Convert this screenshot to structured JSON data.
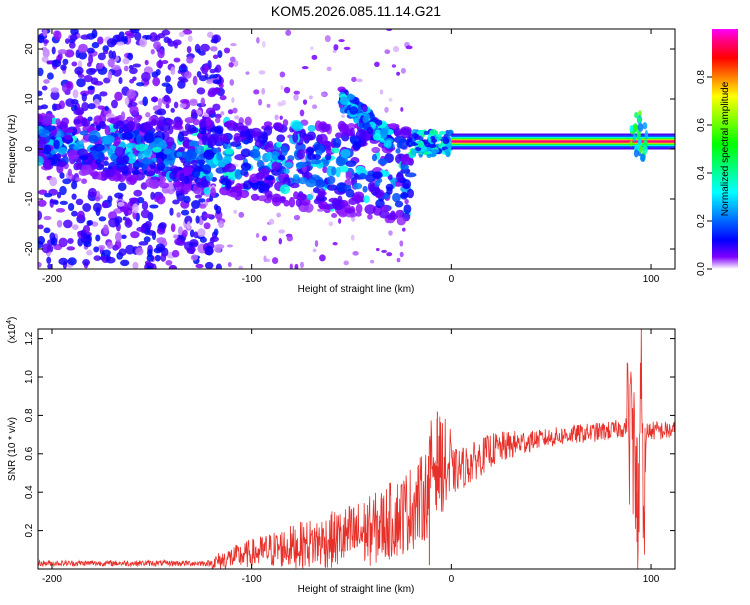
{
  "title": "KOM5.2026.085.11.14.G21",
  "chart_data": [
    {
      "type": "heatmap",
      "title": "KOM5.2026.085.11.14.G21",
      "xlabel": "Height of straight line (km)",
      "ylabel": "Frequency (Hz)",
      "xlim": [
        -207,
        112
      ],
      "ylim": [
        -24,
        24
      ],
      "xticks": [
        -200,
        -100,
        0,
        100
      ],
      "yticks": [
        20,
        10,
        0,
        -10,
        -20
      ],
      "colorbar": {
        "label": "Normalized spectral amplitude",
        "range": [
          0,
          1
        ],
        "ticks": [
          0.0,
          0.2,
          0.4,
          0.6,
          0.8
        ],
        "colormap": [
          "#ff00ff",
          "#ff0080",
          "#ff0000",
          "#ff8000",
          "#ffff00",
          "#80ff00",
          "#00ff00",
          "#00ff80",
          "#00ffff",
          "#0080ff",
          "#0000ff",
          "#8000ff",
          "#ffffff"
        ]
      },
      "features": [
        {
          "name": "broadband scatter",
          "x_range": [
            -207,
            -115
          ],
          "freq_range": [
            -24,
            24
          ],
          "amplitude": 0.12
        },
        {
          "name": "main frequency band",
          "x_range": [
            -207,
            -20
          ],
          "center_freq_start": 1.5,
          "center_freq_end": -5,
          "amplitude": 0.3
        },
        {
          "name": "rising branch",
          "x_range": [
            -55,
            -30
          ],
          "freq_range": [
            2,
            10
          ],
          "amplitude": 0.3
        },
        {
          "name": "dominant tone",
          "x_range": [
            0,
            112
          ],
          "center_freq": 1.5,
          "amplitude": 0.95
        }
      ]
    },
    {
      "type": "line",
      "xlabel": "Height of straight line (km)",
      "ylabel": "SNR (10 * v/v)",
      "y_scale_label": "(x10",
      "y_scale_exponent": "4",
      "xlim": [
        -207,
        112
      ],
      "ylim": [
        0,
        1.25
      ],
      "xticks": [
        -200,
        -100,
        0,
        100
      ],
      "yticks": [
        0.2,
        0.4,
        0.6,
        0.8,
        1.0,
        1.2
      ],
      "color": "#e8302a",
      "series": [
        {
          "name": "SNR",
          "points": [
            [
              -207,
              0.03
            ],
            [
              -120,
              0.03
            ],
            [
              -110,
              0.06
            ],
            [
              -90,
              0.1
            ],
            [
              -60,
              0.15
            ],
            [
              -40,
              0.2
            ],
            [
              -25,
              0.28
            ],
            [
              -15,
              0.36
            ],
            [
              -12,
              0.4
            ],
            [
              -10,
              0.55
            ],
            [
              -5,
              0.55
            ],
            [
              0,
              0.5
            ],
            [
              10,
              0.55
            ],
            [
              20,
              0.62
            ],
            [
              40,
              0.67
            ],
            [
              60,
              0.7
            ],
            [
              80,
              0.72
            ],
            [
              88,
              0.74
            ],
            [
              92,
              0.65
            ],
            [
              94,
              0.16
            ],
            [
              95,
              1.25
            ],
            [
              96,
              0.3
            ],
            [
              98,
              0.72
            ],
            [
              112,
              0.72
            ]
          ],
          "spikes": [
            [
              -11,
              0.02
            ],
            [
              -7,
              0.82
            ],
            [
              93,
              0.14
            ],
            [
              95,
              1.25
            ]
          ]
        }
      ]
    }
  ]
}
